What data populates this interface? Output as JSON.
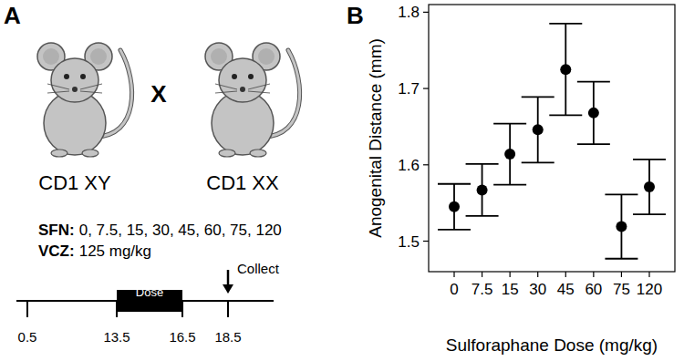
{
  "panel_labels": [
    "A",
    "B"
  ],
  "diagram": {
    "parents": [
      {
        "label": "CD1 XY"
      },
      {
        "label": "CD1 XX"
      }
    ],
    "cross": "X",
    "treatments": [
      {
        "label": "SFN:",
        "text": "0, 7.5, 15, 30, 45, 60, 75, 120"
      },
      {
        "label": "VCZ:",
        "text": "125 mg/kg"
      }
    ],
    "timeline": {
      "ticks": [
        0.5,
        13.5,
        16.5,
        18.5
      ],
      "dose_label": "Dose",
      "collect_label": "Collect"
    }
  },
  "chart_data": {
    "type": "scatter",
    "x_label": "Sulforaphane Dose (mg/kg)",
    "y_label": "Anogenital Distance (mm)",
    "categories": [
      "0",
      "7.5",
      "15",
      "30",
      "45",
      "60",
      "75",
      "120"
    ],
    "values": [
      1.545,
      1.567,
      1.614,
      1.646,
      1.725,
      1.668,
      1.519,
      1.571
    ],
    "errors": [
      0.03,
      0.034,
      0.04,
      0.043,
      0.06,
      0.041,
      0.042,
      0.036
    ],
    "color": "#000000",
    "marker": "circle",
    "ylim": [
      1.46,
      1.81
    ],
    "yticks": [
      1.5,
      1.6,
      1.7,
      1.8
    ],
    "grid": false
  }
}
